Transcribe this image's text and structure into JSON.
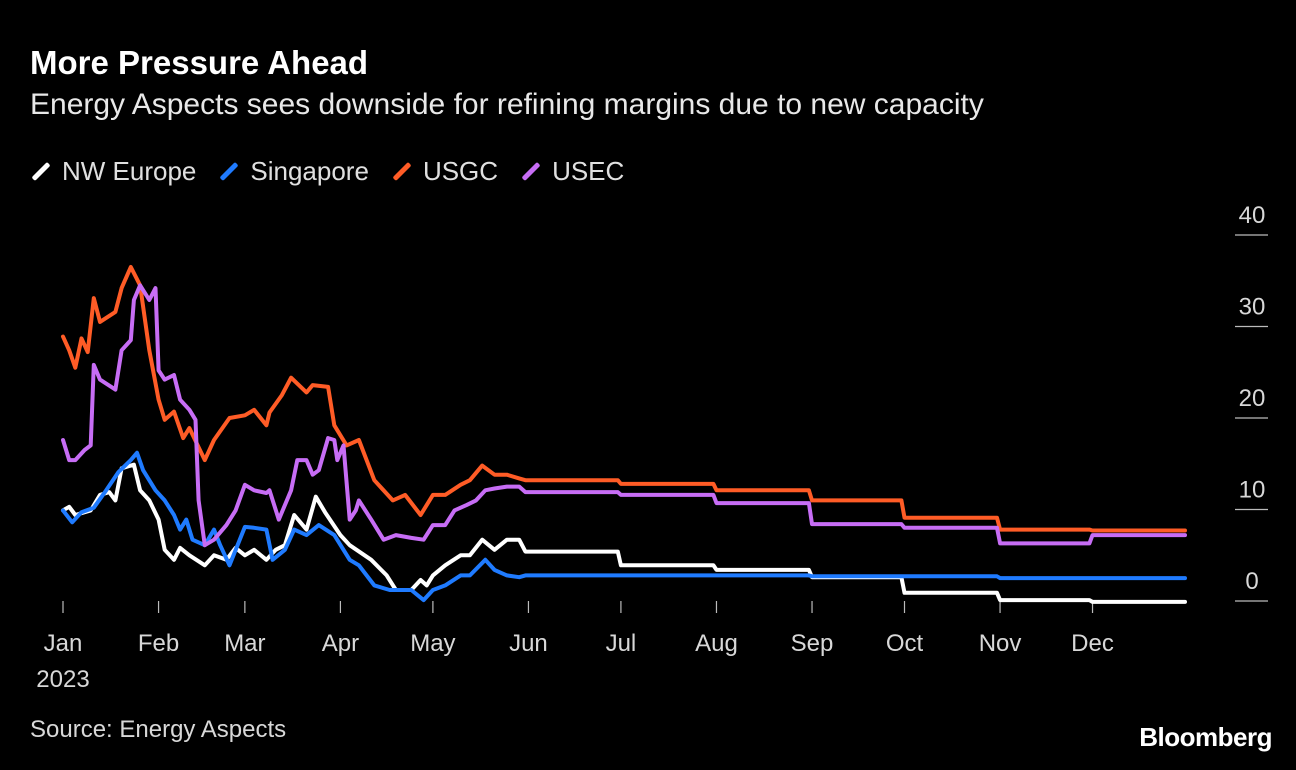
{
  "header": {
    "title": "More Pressure Ahead",
    "subtitle": "Energy Aspects sees downside for refining margins due to new capacity"
  },
  "footer": {
    "source": "Source: Energy Aspects",
    "logo": "Bloomberg"
  },
  "chart_data": {
    "type": "line",
    "title": "More Pressure Ahead",
    "subtitle": "Energy Aspects sees downside for refining margins due to new capacity",
    "xlabel": "",
    "ylabel": "",
    "xlim": [
      "2023-01-01",
      "2023-12-31"
    ],
    "ylim": [
      -1,
      40
    ],
    "yticks": [
      0,
      10,
      20,
      30,
      40
    ],
    "y_axis_side": "right",
    "xticks": [
      {
        "date": "2023-01-01",
        "label": "Jan",
        "sublabel": "2023"
      },
      {
        "date": "2023-02-01",
        "label": "Feb"
      },
      {
        "date": "2023-03-01",
        "label": "Mar"
      },
      {
        "date": "2023-04-01",
        "label": "Apr"
      },
      {
        "date": "2023-05-01",
        "label": "May"
      },
      {
        "date": "2023-06-01",
        "label": "Jun"
      },
      {
        "date": "2023-07-01",
        "label": "Jul"
      },
      {
        "date": "2023-08-01",
        "label": "Aug"
      },
      {
        "date": "2023-09-01",
        "label": "Sep"
      },
      {
        "date": "2023-10-01",
        "label": "Oct"
      },
      {
        "date": "2023-11-01",
        "label": "Nov"
      },
      {
        "date": "2023-12-01",
        "label": "Dec"
      }
    ],
    "legend_position": "top-left",
    "grid": false,
    "series": [
      {
        "name": "NW Europe",
        "color": "#ffffff",
        "points": [
          [
            "01-01",
            9.9
          ],
          [
            "01-03",
            10.3
          ],
          [
            "01-05",
            9.4
          ],
          [
            "01-10",
            9.9
          ],
          [
            "01-13",
            11.6
          ],
          [
            "01-16",
            11.9
          ],
          [
            "01-18",
            11
          ],
          [
            "01-20",
            14.5
          ],
          [
            "01-24",
            14.9
          ],
          [
            "01-26",
            12.1
          ],
          [
            "01-29",
            11
          ],
          [
            "02-01",
            8.9
          ],
          [
            "02-03",
            5.6
          ],
          [
            "02-06",
            4.5
          ],
          [
            "02-08",
            5.8
          ],
          [
            "02-11",
            5.0
          ],
          [
            "02-16",
            3.9
          ],
          [
            "02-19",
            5.0
          ],
          [
            "02-23",
            4.5
          ],
          [
            "02-26",
            5.8
          ],
          [
            "03-01",
            5.0
          ],
          [
            "03-04",
            5.6
          ],
          [
            "03-08",
            4.5
          ],
          [
            "03-11",
            5.6
          ],
          [
            "03-14",
            6.1
          ],
          [
            "03-17",
            9.4
          ],
          [
            "03-21",
            7.8
          ],
          [
            "03-24",
            11.4
          ],
          [
            "03-27",
            9.7
          ],
          [
            "04-01",
            7.2
          ],
          [
            "04-04",
            6.1
          ],
          [
            "04-11",
            4.5
          ],
          [
            "04-16",
            2.8
          ],
          [
            "04-19",
            1.2
          ],
          [
            "04-24",
            1.2
          ],
          [
            "04-27",
            2.3
          ],
          [
            "04-29",
            1.7
          ],
          [
            "05-01",
            2.8
          ],
          [
            "05-05",
            3.9
          ],
          [
            "05-10",
            5.0
          ],
          [
            "05-13",
            5.0
          ],
          [
            "05-17",
            6.7
          ],
          [
            "05-21",
            5.6
          ],
          [
            "05-25",
            6.7
          ],
          [
            "05-29",
            6.7
          ],
          [
            "05-31",
            5.4
          ],
          [
            "06-30",
            5.4
          ],
          [
            "07-01",
            3.9
          ],
          [
            "07-31",
            3.9
          ],
          [
            "08-01",
            3.4
          ],
          [
            "08-31",
            3.4
          ],
          [
            "09-01",
            2.6
          ],
          [
            "09-30",
            2.6
          ],
          [
            "10-01",
            0.9
          ],
          [
            "10-31",
            0.9
          ],
          [
            "11-01",
            0.1
          ],
          [
            "11-30",
            0.1
          ],
          [
            "12-01",
            -0.1
          ],
          [
            "12-31",
            -0.1
          ]
        ]
      },
      {
        "name": "Singapore",
        "color": "#1f7bff",
        "points": [
          [
            "01-01",
            9.9
          ],
          [
            "01-04",
            8.6
          ],
          [
            "01-07",
            9.7
          ],
          [
            "01-11",
            10.2
          ],
          [
            "01-15",
            12.1
          ],
          [
            "01-19",
            14.1
          ],
          [
            "01-23",
            15.4
          ],
          [
            "01-25",
            16.2
          ],
          [
            "01-27",
            14.3
          ],
          [
            "01-31",
            12.1
          ],
          [
            "02-03",
            11
          ],
          [
            "02-06",
            9.4
          ],
          [
            "02-08",
            7.8
          ],
          [
            "02-10",
            8.9
          ],
          [
            "02-12",
            6.7
          ],
          [
            "02-16",
            6.1
          ],
          [
            "02-19",
            7.8
          ],
          [
            "02-21",
            6.1
          ],
          [
            "02-24",
            3.9
          ],
          [
            "03-01",
            8.1
          ],
          [
            "03-04",
            8.0
          ],
          [
            "03-08",
            7.8
          ],
          [
            "03-10",
            4.5
          ],
          [
            "03-14",
            5.6
          ],
          [
            "03-17",
            7.8
          ],
          [
            "03-21",
            7.2
          ],
          [
            "03-25",
            8.3
          ],
          [
            "03-30",
            7.2
          ],
          [
            "04-04",
            4.5
          ],
          [
            "04-07",
            3.9
          ],
          [
            "04-12",
            1.7
          ],
          [
            "04-17",
            1.2
          ],
          [
            "04-24",
            1.2
          ],
          [
            "04-28",
            0.1
          ],
          [
            "05-01",
            1.2
          ],
          [
            "05-05",
            1.7
          ],
          [
            "05-10",
            2.8
          ],
          [
            "05-13",
            2.8
          ],
          [
            "05-18",
            4.5
          ],
          [
            "05-21",
            3.4
          ],
          [
            "05-25",
            2.8
          ],
          [
            "05-29",
            2.6
          ],
          [
            "05-31",
            2.8
          ],
          [
            "06-30",
            2.8
          ],
          [
            "07-01",
            2.8
          ],
          [
            "07-31",
            2.8
          ],
          [
            "08-01",
            2.8
          ],
          [
            "08-31",
            2.8
          ],
          [
            "09-01",
            2.7
          ],
          [
            "09-30",
            2.7
          ],
          [
            "10-01",
            2.7
          ],
          [
            "10-31",
            2.7
          ],
          [
            "11-01",
            2.5
          ],
          [
            "11-30",
            2.5
          ],
          [
            "12-01",
            2.5
          ],
          [
            "12-31",
            2.5
          ]
        ]
      },
      {
        "name": "USGC",
        "color": "#ff5c26",
        "points": [
          [
            "01-01",
            28.9
          ],
          [
            "01-03",
            27.4
          ],
          [
            "01-05",
            25.5
          ],
          [
            "01-07",
            28.7
          ],
          [
            "01-09",
            27.2
          ],
          [
            "01-11",
            33.1
          ],
          [
            "01-13",
            30.5
          ],
          [
            "01-18",
            31.6
          ],
          [
            "01-20",
            34.2
          ],
          [
            "01-23",
            36.5
          ],
          [
            "01-26",
            34.5
          ],
          [
            "01-29",
            27.4
          ],
          [
            "02-01",
            22
          ],
          [
            "02-03",
            19.8
          ],
          [
            "02-06",
            20.7
          ],
          [
            "02-09",
            17.8
          ],
          [
            "02-11",
            18.9
          ],
          [
            "02-16",
            15.4
          ],
          [
            "02-19",
            17.6
          ],
          [
            "02-24",
            20
          ],
          [
            "03-01",
            20.3
          ],
          [
            "03-04",
            20.9
          ],
          [
            "03-08",
            19.2
          ],
          [
            "03-09",
            20.6
          ],
          [
            "03-13",
            22.5
          ],
          [
            "03-16",
            24.4
          ],
          [
            "03-21",
            22.8
          ],
          [
            "03-23",
            23.6
          ],
          [
            "03-28",
            23.4
          ],
          [
            "03-30",
            19.2
          ],
          [
            "04-03",
            17
          ],
          [
            "04-07",
            17.6
          ],
          [
            "04-12",
            13.2
          ],
          [
            "04-18",
            11
          ],
          [
            "04-22",
            11.6
          ],
          [
            "04-27",
            9.4
          ],
          [
            "05-01",
            11.6
          ],
          [
            "05-05",
            11.6
          ],
          [
            "05-10",
            12.7
          ],
          [
            "05-13",
            13.2
          ],
          [
            "05-17",
            14.8
          ],
          [
            "05-21",
            13.8
          ],
          [
            "05-25",
            13.8
          ],
          [
            "05-29",
            13.4
          ],
          [
            "05-31",
            13.2
          ],
          [
            "06-30",
            13.2
          ],
          [
            "07-01",
            12.8
          ],
          [
            "07-31",
            12.8
          ],
          [
            "08-01",
            12.1
          ],
          [
            "08-31",
            12.1
          ],
          [
            "09-01",
            11
          ],
          [
            "09-30",
            11
          ],
          [
            "10-01",
            9.1
          ],
          [
            "10-31",
            9.1
          ],
          [
            "11-01",
            7.8
          ],
          [
            "11-30",
            7.8
          ],
          [
            "12-01",
            7.7
          ],
          [
            "12-31",
            7.7
          ]
        ]
      },
      {
        "name": "USEC",
        "color": "#c76df5",
        "points": [
          [
            "01-01",
            17.6
          ],
          [
            "01-03",
            15.4
          ],
          [
            "01-05",
            15.4
          ],
          [
            "01-08",
            16.5
          ],
          [
            "01-10",
            17
          ],
          [
            "01-11",
            25.8
          ],
          [
            "01-13",
            24.2
          ],
          [
            "01-18",
            23.1
          ],
          [
            "01-20",
            27.4
          ],
          [
            "01-23",
            28.5
          ],
          [
            "01-24",
            32.9
          ],
          [
            "01-26",
            34.5
          ],
          [
            "01-29",
            32.9
          ],
          [
            "01-31",
            34.2
          ],
          [
            "02-01",
            25.2
          ],
          [
            "02-03",
            24.2
          ],
          [
            "02-06",
            24.7
          ],
          [
            "02-08",
            22
          ],
          [
            "02-11",
            20.9
          ],
          [
            "02-13",
            19.8
          ],
          [
            "02-14",
            11
          ],
          [
            "02-16",
            6.1
          ],
          [
            "02-19",
            6.7
          ],
          [
            "02-23",
            8.3
          ],
          [
            "02-26",
            9.9
          ],
          [
            "03-01",
            12.7
          ],
          [
            "03-04",
            12.1
          ],
          [
            "03-08",
            11.8
          ],
          [
            "03-09",
            12.1
          ],
          [
            "03-12",
            8.9
          ],
          [
            "03-16",
            12.1
          ],
          [
            "03-18",
            15.4
          ],
          [
            "03-21",
            15.4
          ],
          [
            "03-23",
            13.8
          ],
          [
            "03-25",
            14.3
          ],
          [
            "03-28",
            17.8
          ],
          [
            "03-30",
            17.6
          ],
          [
            "03-31",
            15.4
          ],
          [
            "04-02",
            17.0
          ],
          [
            "04-04",
            8.9
          ],
          [
            "04-06",
            9.9
          ],
          [
            "04-07",
            11
          ],
          [
            "04-11",
            8.9
          ],
          [
            "04-15",
            6.7
          ],
          [
            "04-19",
            7.2
          ],
          [
            "04-24",
            6.9
          ],
          [
            "04-28",
            6.7
          ],
          [
            "05-01",
            8.3
          ],
          [
            "05-05",
            8.3
          ],
          [
            "05-08",
            9.9
          ],
          [
            "05-12",
            10.5
          ],
          [
            "05-15",
            11.0
          ],
          [
            "05-18",
            12.1
          ],
          [
            "05-21",
            12.3
          ],
          [
            "05-25",
            12.5
          ],
          [
            "05-29",
            12.5
          ],
          [
            "05-31",
            11.9
          ],
          [
            "06-30",
            11.9
          ],
          [
            "07-01",
            11.6
          ],
          [
            "07-31",
            11.6
          ],
          [
            "08-01",
            10.7
          ],
          [
            "08-31",
            10.7
          ],
          [
            "09-01",
            8.4
          ],
          [
            "09-30",
            8.4
          ],
          [
            "10-01",
            8.0
          ],
          [
            "10-31",
            8.0
          ],
          [
            "11-01",
            6.3
          ],
          [
            "11-30",
            6.3
          ],
          [
            "12-01",
            7.2
          ],
          [
            "12-31",
            7.2
          ]
        ]
      }
    ]
  }
}
